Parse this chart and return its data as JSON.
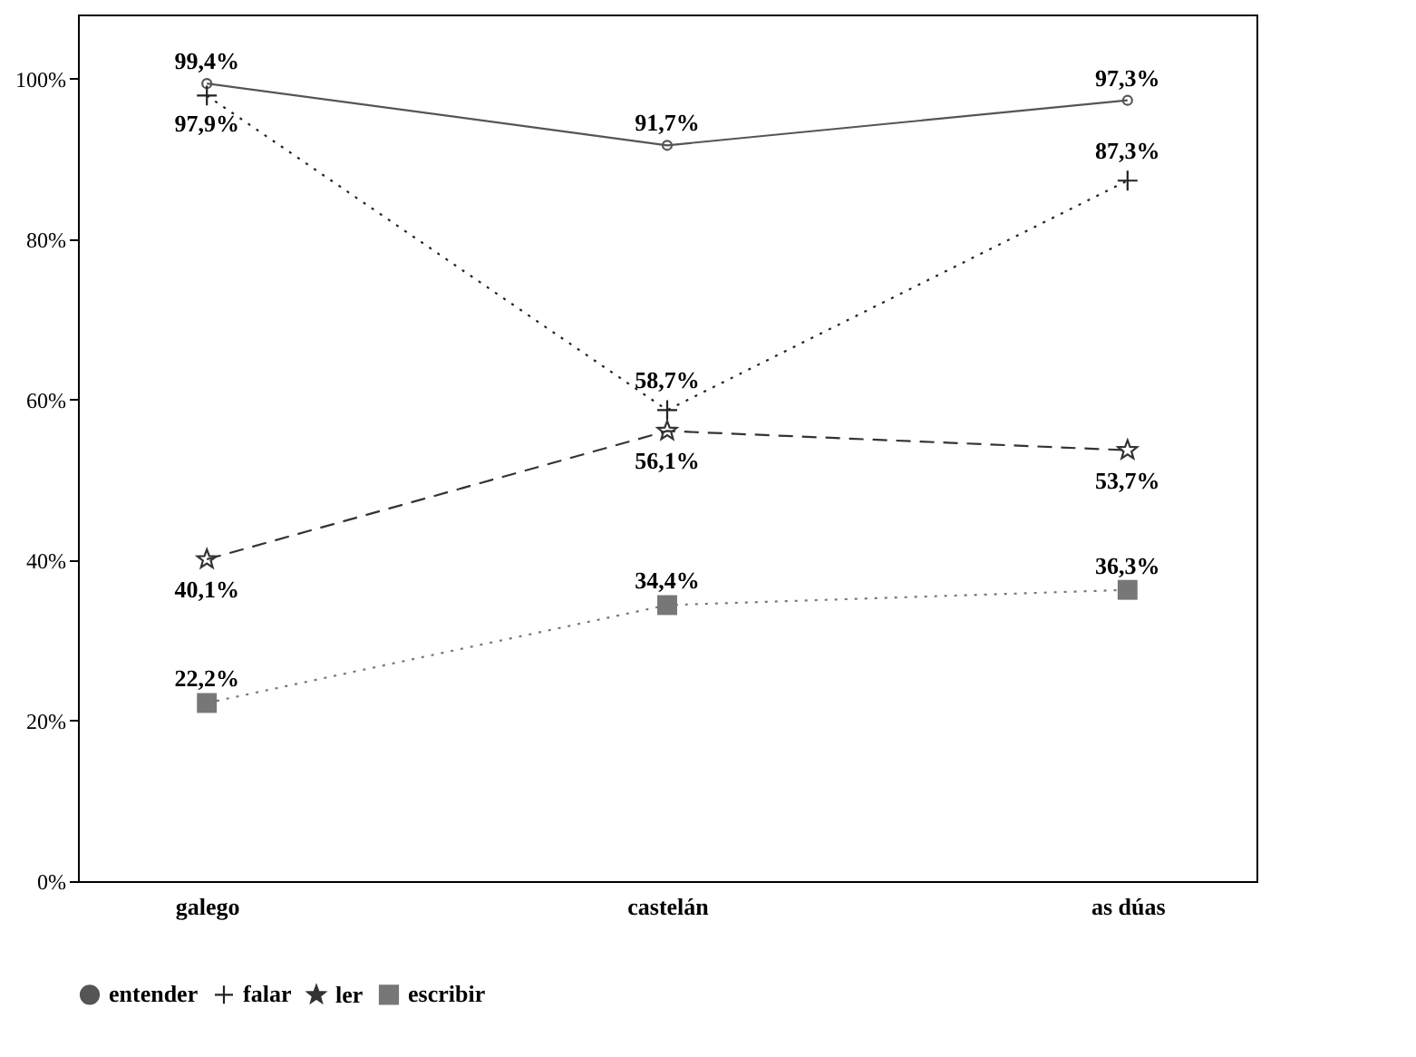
{
  "chart_data": {
    "type": "line",
    "categories": [
      "galego",
      "castelán",
      "as dúas"
    ],
    "ylim": [
      0,
      108
    ],
    "yticks": [
      {
        "value": 0,
        "label": "0%"
      },
      {
        "value": 20,
        "label": "20%"
      },
      {
        "value": 40,
        "label": "40%"
      },
      {
        "value": 60,
        "label": "60%"
      },
      {
        "value": 80,
        "label": "80%"
      },
      {
        "value": 100,
        "label": "100%"
      }
    ],
    "grid": false,
    "legend": "bottom",
    "series": [
      {
        "name": "entender",
        "color": "#555555",
        "marker": "circle",
        "line_style": "solid",
        "values": [
          99.4,
          91.7,
          97.3
        ],
        "value_labels": [
          "99,4%",
          "91,7%",
          "97,3%"
        ]
      },
      {
        "name": "falar",
        "color": "#222222",
        "marker": "cross",
        "line_style": "dotted",
        "values": [
          97.9,
          58.7,
          87.3
        ],
        "value_labels": [
          "97,9%",
          "58,7%",
          "87,3%"
        ]
      },
      {
        "name": "ler",
        "color": "#333333",
        "marker": "star",
        "line_style": "dashed",
        "values": [
          40.1,
          56.1,
          53.7
        ],
        "value_labels": [
          "40,1%",
          "56,1%",
          "53,7%"
        ]
      },
      {
        "name": "escribir",
        "color": "#777777",
        "marker": "square",
        "line_style": "dotted",
        "values": [
          22.2,
          34.4,
          36.3
        ],
        "value_labels": [
          "22,2%",
          "34,4%",
          "36,3%"
        ]
      }
    ]
  }
}
